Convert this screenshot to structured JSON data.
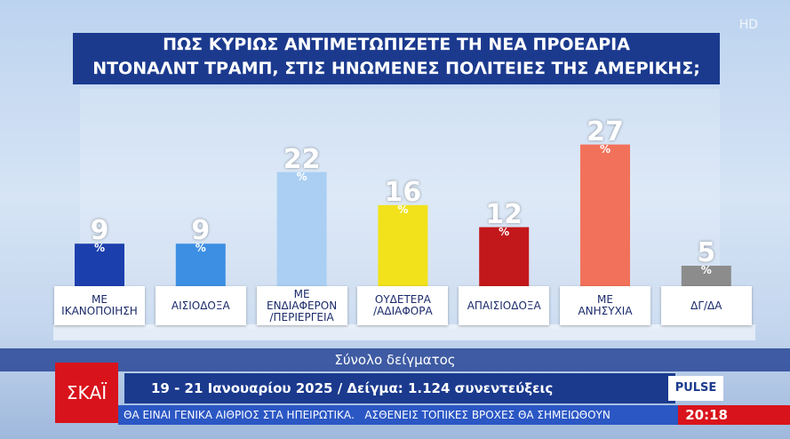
{
  "chart_data": {
    "type": "bar",
    "title": "ΠΩΣ ΚΥΡΙΩΣ ΑΝΤΙΜΕΤΩΠΙΖΕΤΕ ΤΗ ΝΕΑ ΠΡΟΕΔΡΙΑ\nΝΤΟΝΑΛΝΤ ΤΡΑΜΠ, ΣΤΙΣ ΗΝΩΜΕΝΕΣ ΠΟΛΙΤΕΙΕΣ ΤΗΣ ΑΜΕΡΙΚΗΣ;",
    "categories": [
      "ΜΕ\nΙΚΑΝΟΠΟΙΗΣΗ",
      "ΑΙΣΙΟΔΟΞΑ",
      "ΜΕ\nΕΝΔΙΑΦΕΡΟΝ\n/ΠΕΡΙΕΡΓΕΙΑ",
      "ΟΥΔΕΤΕΡΑ\n/ΑΔΙΑΦΟΡΑ",
      "ΑΠΑΙΣΙΟΔΟΞΑ",
      "ΜΕ\nΑΝΗΣΥΧΙΑ",
      "ΔΓ/ΔΑ"
    ],
    "values": [
      9,
      9,
      22,
      16,
      12,
      27,
      5
    ],
    "unit": "%",
    "colors": [
      "#1c3fae",
      "#3d8fe3",
      "#aacff3",
      "#f1e21c",
      "#c2181b",
      "#f2715a",
      "#8c8c8c"
    ],
    "subtitle": "Σύνολο δείγματος",
    "note": "19 - 21 Ιανουαρίου 2025 / Δείγμα: 1.124 συνεντεύξεις"
  },
  "broadcast": {
    "channel": "ΣΚΑΪ",
    "hd": "HD",
    "pollster": "PULSE",
    "ticker": "ΘΑ ΕΙΝΑΙ ΓΕΝΙΚΑ ΑΙΘΡΙΟΣ ΣΤΑ ΗΠΕΙΡΩΤΙΚΑ.   ΑΣΘΕΝΕΙΣ ΤΟΠΙΚΕΣ ΒΡΟΧΕΣ ΘΑ ΣΗΜΕΙΩΘΟΥΝ",
    "time": "20:18"
  }
}
